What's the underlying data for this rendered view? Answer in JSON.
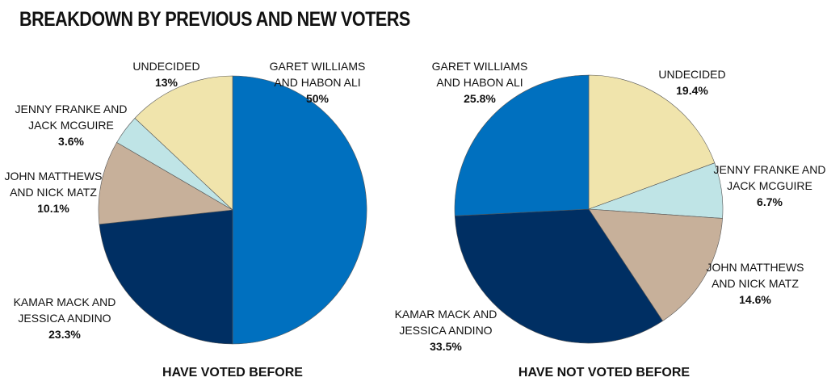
{
  "title": "BREAKDOWN BY PREVIOUS AND NEW VOTERS",
  "colors": {
    "garet_williams_habon_ali": "#0070bf",
    "kamar_mack_jessica_andino": "#002f63",
    "john_matthews_nick_matz": "#c7b09a",
    "jenny_franke_jack_mcguire": "#bfe4e6",
    "undecided": "#f0e4ac"
  },
  "chart_data": [
    {
      "type": "pie",
      "title": "HAVE VOTED BEFORE",
      "slices": [
        {
          "line1": "GARET WILLIAMS",
          "line2": "AND HABON ALI",
          "value": 50,
          "pct": "50%",
          "color": "#0070bf"
        },
        {
          "line1": "KAMAR MACK AND",
          "line2": "JESSICA ANDINO",
          "value": 23.3,
          "pct": "23.3%",
          "color": "#002f63"
        },
        {
          "line1": "JOHN MATTHEWS",
          "line2": "AND NICK MATZ",
          "value": 10.1,
          "pct": "10.1%",
          "color": "#c7b09a"
        },
        {
          "line1": "JENNY FRANKE AND",
          "line2": "JACK MCGUIRE",
          "value": 3.6,
          "pct": "3.6%",
          "color": "#bfe4e6"
        },
        {
          "line1": "UNDECIDED",
          "line2": "",
          "value": 13,
          "pct": "13%",
          "color": "#f0e4ac"
        }
      ]
    },
    {
      "type": "pie",
      "title": "HAVE NOT VOTED BEFORE",
      "slices": [
        {
          "line1": "UNDECIDED",
          "line2": "",
          "value": 19.4,
          "pct": "19.4%",
          "color": "#f0e4ac"
        },
        {
          "line1": "JENNY FRANKE AND",
          "line2": "JACK MCGUIRE",
          "value": 6.7,
          "pct": "6.7%",
          "color": "#bfe4e6"
        },
        {
          "line1": "JOHN MATTHEWS",
          "line2": "AND NICK MATZ",
          "value": 14.6,
          "pct": "14.6%",
          "color": "#c7b09a"
        },
        {
          "line1": "KAMAR MACK AND",
          "line2": "JESSICA ANDINO",
          "value": 33.5,
          "pct": "33.5%",
          "color": "#002f63"
        },
        {
          "line1": "GARET WILLIAMS",
          "line2": "AND HABON ALI",
          "value": 25.8,
          "pct": "25.8%",
          "color": "#0070bf"
        }
      ]
    }
  ]
}
